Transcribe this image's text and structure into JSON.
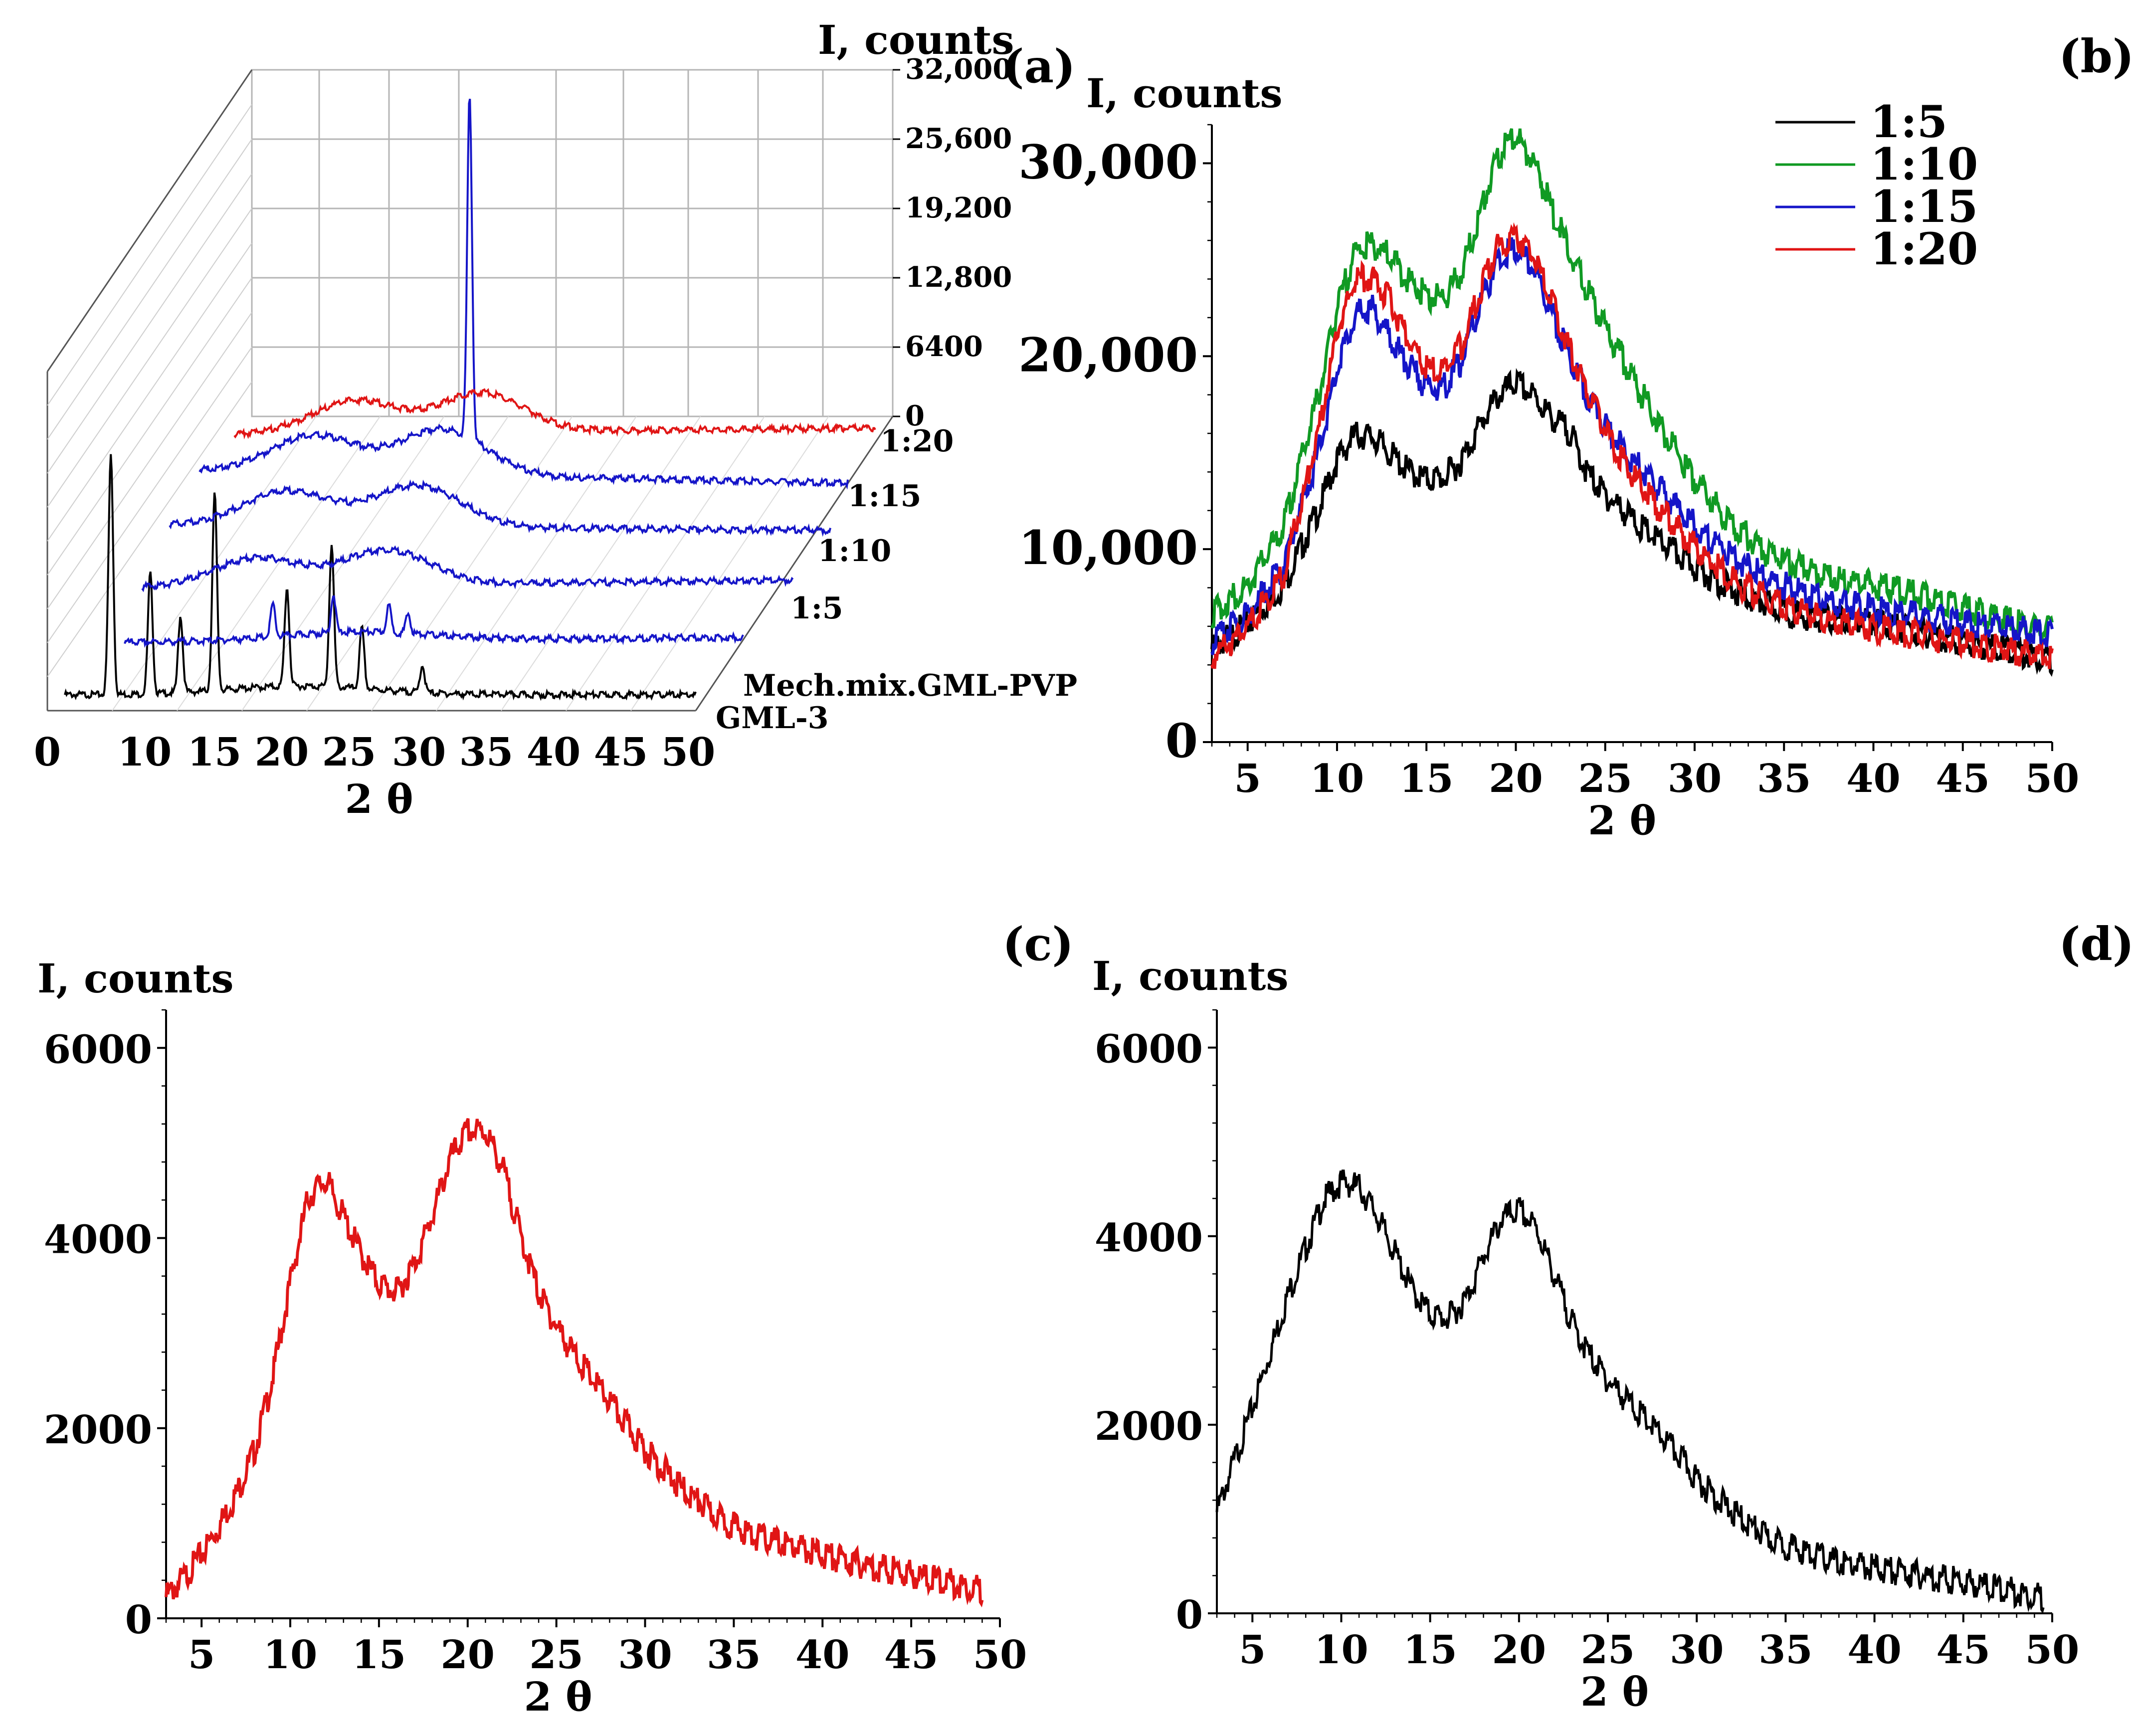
{
  "panels": {
    "a": {
      "letter": "(a)"
    },
    "b": {
      "letter": "(b)"
    },
    "c": {
      "letter": "(c)"
    },
    "d": {
      "letter": "(d)"
    }
  },
  "colors": {
    "black": "#000000",
    "green": "#109a23",
    "blue": "#1515c8",
    "red": "#e01515",
    "grid": "#b5b5b5"
  },
  "chart_data": [
    {
      "panel": "a",
      "type": "line",
      "style": "3d-waterfall",
      "xlabel": "2 θ",
      "zlabel": "I, counts",
      "xlim": [
        0,
        50
      ],
      "x_ticks": [
        "0",
        "10",
        "15",
        "20",
        "25",
        "30",
        "35",
        "40",
        "45",
        "50"
      ],
      "z_ticks": [
        "0",
        "6400",
        "12,800",
        "19,200",
        "25,600",
        "32,000"
      ],
      "series": [
        {
          "name": "GML-3",
          "color": "black",
          "peaks": [
            [
              5.5,
              22000
            ],
            [
              8.5,
              11000
            ],
            [
              10.8,
              7000
            ],
            [
              13.4,
              18000
            ],
            [
              18.9,
              9000
            ],
            [
              22.3,
              13000
            ],
            [
              24.6,
              5500
            ],
            [
              29.2,
              2500
            ]
          ]
        },
        {
          "name": "Mech.mix.GML-PVP",
          "color": "blue",
          "peaks": [
            [
              13.5,
              3000
            ],
            [
              18.2,
              3500
            ],
            [
              22.5,
              2500
            ],
            [
              24.0,
              1800
            ]
          ]
        },
        {
          "name": "1:5",
          "color": "blue",
          "peaks": [
            [
              10.5,
              2600
            ],
            [
              20.0,
              3200
            ]
          ]
        },
        {
          "name": "1:10",
          "color": "blue",
          "peaks": [
            [
              10.5,
              3200
            ],
            [
              20.0,
              3800
            ]
          ]
        },
        {
          "name": "1:15",
          "color": "blue",
          "peaks": [
            [
              10.5,
              3400
            ],
            [
              20.0,
              4200
            ],
            [
              22.0,
              31500
            ]
          ]
        },
        {
          "name": "1:20",
          "color": "red",
          "peaks": [
            [
              11.0,
              3000
            ],
            [
              20.5,
              3600
            ]
          ]
        }
      ]
    },
    {
      "panel": "b",
      "type": "line",
      "xlabel": "2 θ",
      "ylabel": "I, counts",
      "xlim": [
        3,
        50
      ],
      "ylim": [
        0,
        32000
      ],
      "x_ticks": [
        "5",
        "10",
        "15",
        "20",
        "25",
        "30",
        "35",
        "40",
        "45",
        "50"
      ],
      "y_ticks": [
        "0",
        "10,000",
        "20,000",
        "30,000"
      ],
      "legend": "top-right",
      "series": [
        {
          "name": "1:5",
          "color": "black",
          "x": [
            3,
            5,
            7,
            9,
            10,
            11,
            12,
            13,
            14,
            15,
            16,
            17,
            18,
            19,
            20,
            21,
            22,
            23,
            24,
            25,
            26,
            27,
            28,
            30,
            32,
            34,
            36,
            38,
            40,
            42,
            44,
            46,
            48,
            50
          ],
          "y": [
            5200,
            6500,
            8500,
            12500,
            15000,
            16300,
            16200,
            15300,
            14400,
            14000,
            14100,
            15000,
            16800,
            18300,
            19000,
            18300,
            17200,
            16500,
            14300,
            13200,
            12400,
            11500,
            10800,
            9500,
            8300,
            7500,
            6900,
            6700,
            6600,
            6200,
            5800,
            5400,
            5100,
            4700
          ]
        },
        {
          "name": "1:10",
          "color": "green",
          "x": [
            3,
            5,
            7,
            9,
            10,
            11,
            12,
            13,
            14,
            15,
            16,
            17,
            18,
            19,
            20,
            21,
            22,
            23,
            24,
            25,
            26,
            27,
            28,
            30,
            32,
            34,
            36,
            38,
            40,
            42,
            44,
            46,
            48,
            50
          ],
          "y": [
            7000,
            8500,
            11500,
            18500,
            22800,
            25800,
            26200,
            25500,
            24300,
            23500,
            23400,
            24800,
            27800,
            30800,
            31800,
            30500,
            28000,
            25800,
            23800,
            21800,
            20200,
            18500,
            16800,
            14000,
            11800,
            10200,
            9400,
            8900,
            8500,
            8100,
            7600,
            7100,
            6600,
            6200
          ]
        },
        {
          "name": "1:15",
          "color": "blue",
          "x": [
            3,
            5,
            7,
            9,
            10,
            11,
            12,
            13,
            14,
            15,
            16,
            17,
            18,
            19,
            20,
            21,
            22,
            23,
            24,
            25,
            26,
            27,
            28,
            30,
            32,
            34,
            36,
            38,
            40,
            42,
            44,
            46,
            48,
            50
          ],
          "y": [
            5600,
            7000,
            9500,
            15500,
            19800,
            22500,
            22800,
            21300,
            19900,
            18800,
            18800,
            20200,
            23000,
            25400,
            26000,
            25000,
            22700,
            20300,
            18300,
            16800,
            15600,
            14500,
            13500,
            11600,
            10000,
            8900,
            8100,
            7600,
            7300,
            7000,
            6700,
            6400,
            6200,
            6000
          ]
        },
        {
          "name": "1:20",
          "color": "red",
          "x": [
            3,
            5,
            7,
            9,
            10,
            11,
            12,
            13,
            14,
            15,
            16,
            17,
            18,
            19,
            20,
            21,
            22,
            23,
            24,
            25,
            26,
            27,
            28,
            30,
            32,
            34,
            36,
            38,
            40,
            42,
            44,
            46,
            48,
            50
          ],
          "y": [
            4800,
            6300,
            9000,
            16500,
            21500,
            24300,
            24500,
            23200,
            21200,
            19700,
            19600,
            21000,
            23800,
            26000,
            26700,
            25500,
            23200,
            20800,
            18500,
            16600,
            15000,
            13700,
            12500,
            10500,
            8800,
            7800,
            7100,
            6600,
            6300,
            6000,
            5700,
            5400,
            5100,
            4800
          ]
        }
      ]
    },
    {
      "panel": "c",
      "type": "line",
      "xlabel": "2 θ",
      "ylabel": "I, counts",
      "xlim": [
        3,
        50
      ],
      "ylim": [
        0,
        6400
      ],
      "x_ticks": [
        "5",
        "10",
        "15",
        "20",
        "25",
        "30",
        "35",
        "40",
        "45",
        "50"
      ],
      "y_ticks": [
        "0",
        "2000",
        "4000",
        "6000"
      ],
      "series": [
        {
          "color": "red",
          "x": [
            3,
            4,
            5,
            6,
            7,
            8,
            9,
            10,
            11,
            12,
            13,
            14,
            15,
            16,
            17,
            18,
            19,
            20,
            21,
            22,
            23,
            24,
            25,
            26,
            27,
            28,
            29,
            30,
            32,
            34,
            36,
            38,
            40,
            42,
            44,
            46,
            48,
            49
          ],
          "y": [
            300,
            500,
            750,
            1050,
            1400,
            1850,
            2600,
            3600,
            4500,
            4700,
            4300,
            3900,
            3600,
            3500,
            3800,
            4300,
            4900,
            5200,
            5200,
            4800,
            4100,
            3500,
            3150,
            2850,
            2600,
            2350,
            2100,
            1850,
            1450,
            1150,
            950,
            850,
            750,
            650,
            580,
            500,
            420,
            380
          ]
        }
      ]
    },
    {
      "panel": "d",
      "type": "line",
      "xlabel": "2 θ",
      "ylabel": "I, counts",
      "xlim": [
        3,
        50
      ],
      "ylim": [
        0,
        6400
      ],
      "x_ticks": [
        "5",
        "10",
        "15",
        "20",
        "25",
        "30",
        "35",
        "40",
        "45",
        "50"
      ],
      "y_ticks": [
        "0",
        "2000",
        "4000",
        "6000"
      ],
      "series": [
        {
          "color": "black",
          "x": [
            3,
            4,
            5,
            6,
            7,
            8,
            9,
            10,
            11,
            12,
            13,
            14,
            15,
            16,
            17,
            18,
            19,
            20,
            21,
            22,
            23,
            24,
            25,
            26,
            27,
            28,
            29,
            30,
            32,
            34,
            36,
            38,
            40,
            42,
            44,
            46,
            48,
            49.5
          ],
          "y": [
            1150,
            1700,
            2250,
            2850,
            3450,
            3950,
            4450,
            4650,
            4600,
            4300,
            3900,
            3500,
            3250,
            3200,
            3400,
            3850,
            4250,
            4350,
            4150,
            3650,
            3150,
            2800,
            2550,
            2350,
            2150,
            1950,
            1750,
            1500,
            1150,
            870,
            730,
            610,
            560,
            500,
            440,
            380,
            300,
            250
          ]
        }
      ]
    }
  ]
}
